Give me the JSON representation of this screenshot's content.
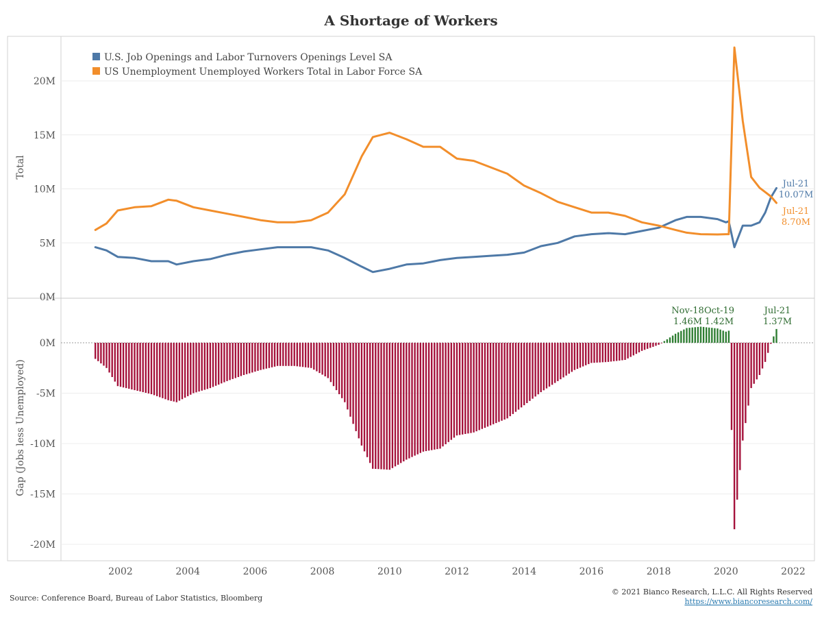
{
  "chart_data": [
    {
      "type": "line",
      "title": "A Shortage of Workers",
      "ylabel": "Total",
      "ylim": [
        0,
        23500000
      ],
      "ytick_labels": [
        "0M",
        "5M",
        "10M",
        "15M",
        "20M"
      ],
      "xtick_labels": [
        "2002",
        "2004",
        "2006",
        "2008",
        "2010",
        "2012",
        "2014",
        "2016",
        "2018",
        "2020",
        "2022"
      ],
      "grid": true,
      "legend_position": "top-left",
      "series": [
        {
          "name": "U.S. Job Openings and Labor Turnovers Openings Level SA",
          "color": "#4e79a7",
          "points": [
            [
              "2001-04",
              4.6
            ],
            [
              "2001-08",
              4.3
            ],
            [
              "2001-12",
              3.7
            ],
            [
              "2002-06",
              3.6
            ],
            [
              "2002-12",
              3.3
            ],
            [
              "2003-06",
              3.3
            ],
            [
              "2003-09",
              3.0
            ],
            [
              "2004-03",
              3.3
            ],
            [
              "2004-09",
              3.5
            ],
            [
              "2005-03",
              3.9
            ],
            [
              "2005-09",
              4.2
            ],
            [
              "2006-03",
              4.4
            ],
            [
              "2006-09",
              4.6
            ],
            [
              "2007-03",
              4.6
            ],
            [
              "2007-09",
              4.6
            ],
            [
              "2008-03",
              4.3
            ],
            [
              "2008-09",
              3.6
            ],
            [
              "2009-03",
              2.8
            ],
            [
              "2009-07",
              2.3
            ],
            [
              "2010-01",
              2.6
            ],
            [
              "2010-07",
              3.0
            ],
            [
              "2011-01",
              3.1
            ],
            [
              "2011-07",
              3.4
            ],
            [
              "2012-01",
              3.6
            ],
            [
              "2012-07",
              3.7
            ],
            [
              "2013-01",
              3.8
            ],
            [
              "2013-07",
              3.9
            ],
            [
              "2014-01",
              4.1
            ],
            [
              "2014-07",
              4.7
            ],
            [
              "2015-01",
              5.0
            ],
            [
              "2015-07",
              5.6
            ],
            [
              "2016-01",
              5.8
            ],
            [
              "2016-07",
              5.9
            ],
            [
              "2017-01",
              5.8
            ],
            [
              "2017-07",
              6.1
            ],
            [
              "2018-01",
              6.4
            ],
            [
              "2018-07",
              7.1
            ],
            [
              "2018-11",
              7.4
            ],
            [
              "2019-04",
              7.4
            ],
            [
              "2019-10",
              7.2
            ],
            [
              "2020-01",
              6.9
            ],
            [
              "2020-02",
              7.0
            ],
            [
              "2020-04",
              4.6
            ],
            [
              "2020-07",
              6.6
            ],
            [
              "2020-10",
              6.6
            ],
            [
              "2021-01",
              6.9
            ],
            [
              "2021-03",
              7.8
            ],
            [
              "2021-05",
              9.2
            ],
            [
              "2021-07",
              10.07
            ]
          ],
          "end_label": {
            "date": "Jul-21",
            "value": "10.07M"
          }
        },
        {
          "name": "US Unemployment Unemployed Workers Total in Labor Force SA",
          "color": "#f28e2b",
          "points": [
            [
              "2001-04",
              6.2
            ],
            [
              "2001-08",
              6.8
            ],
            [
              "2001-12",
              8.0
            ],
            [
              "2002-06",
              8.3
            ],
            [
              "2002-12",
              8.4
            ],
            [
              "2003-06",
              9.0
            ],
            [
              "2003-09",
              8.9
            ],
            [
              "2004-03",
              8.3
            ],
            [
              "2004-09",
              8.0
            ],
            [
              "2005-03",
              7.7
            ],
            [
              "2005-09",
              7.4
            ],
            [
              "2006-03",
              7.1
            ],
            [
              "2006-09",
              6.9
            ],
            [
              "2007-03",
              6.9
            ],
            [
              "2007-09",
              7.1
            ],
            [
              "2008-03",
              7.8
            ],
            [
              "2008-09",
              9.5
            ],
            [
              "2009-03",
              13.0
            ],
            [
              "2009-07",
              14.8
            ],
            [
              "2010-01",
              15.2
            ],
            [
              "2010-07",
              14.6
            ],
            [
              "2011-01",
              13.9
            ],
            [
              "2011-07",
              13.9
            ],
            [
              "2012-01",
              12.8
            ],
            [
              "2012-07",
              12.6
            ],
            [
              "2013-01",
              12.0
            ],
            [
              "2013-07",
              11.4
            ],
            [
              "2014-01",
              10.3
            ],
            [
              "2014-07",
              9.6
            ],
            [
              "2015-01",
              8.8
            ],
            [
              "2015-07",
              8.3
            ],
            [
              "2016-01",
              7.8
            ],
            [
              "2016-07",
              7.8
            ],
            [
              "2017-01",
              7.5
            ],
            [
              "2017-07",
              6.9
            ],
            [
              "2018-01",
              6.6
            ],
            [
              "2018-07",
              6.2
            ],
            [
              "2018-11",
              5.94
            ],
            [
              "2019-04",
              5.8
            ],
            [
              "2019-10",
              5.78
            ],
            [
              "2020-01",
              5.8
            ],
            [
              "2020-02",
              5.8
            ],
            [
              "2020-04",
              23.1
            ],
            [
              "2020-07",
              16.3
            ],
            [
              "2020-10",
              11.1
            ],
            [
              "2021-01",
              10.1
            ],
            [
              "2021-03",
              9.7
            ],
            [
              "2021-05",
              9.3
            ],
            [
              "2021-07",
              8.7
            ]
          ],
          "end_label": {
            "date": "Jul-21",
            "value": "8.70M"
          }
        }
      ]
    },
    {
      "type": "bar",
      "ylabel": "Gap (Jobs less Unemployed)",
      "ylim": [
        -21000000,
        3500000
      ],
      "ytick_labels": [
        "-20M",
        "-15M",
        "-10M",
        "-5M",
        "0M"
      ],
      "xtick_labels": [
        "2002",
        "2004",
        "2006",
        "2008",
        "2010",
        "2012",
        "2014",
        "2016",
        "2018",
        "2020",
        "2022"
      ],
      "positive_color": "#2e7d32",
      "negative_color": "#a5123b",
      "series": [
        {
          "name": "Gap",
          "points": [
            [
              "2001-04",
              -1.6
            ],
            [
              "2001-08",
              -2.5
            ],
            [
              "2001-12",
              -4.3
            ],
            [
              "2002-06",
              -4.7
            ],
            [
              "2002-12",
              -5.1
            ],
            [
              "2003-06",
              -5.7
            ],
            [
              "2003-09",
              -5.9
            ],
            [
              "2004-03",
              -5.0
            ],
            [
              "2004-09",
              -4.5
            ],
            [
              "2005-03",
              -3.8
            ],
            [
              "2005-09",
              -3.2
            ],
            [
              "2006-03",
              -2.7
            ],
            [
              "2006-09",
              -2.3
            ],
            [
              "2007-03",
              -2.3
            ],
            [
              "2007-09",
              -2.5
            ],
            [
              "2008-03",
              -3.5
            ],
            [
              "2008-09",
              -5.9
            ],
            [
              "2009-03",
              -10.2
            ],
            [
              "2009-07",
              -12.5
            ],
            [
              "2010-01",
              -12.6
            ],
            [
              "2010-07",
              -11.6
            ],
            [
              "2011-01",
              -10.8
            ],
            [
              "2011-07",
              -10.5
            ],
            [
              "2012-01",
              -9.2
            ],
            [
              "2012-07",
              -8.9
            ],
            [
              "2013-01",
              -8.2
            ],
            [
              "2013-07",
              -7.5
            ],
            [
              "2014-01",
              -6.2
            ],
            [
              "2014-07",
              -4.9
            ],
            [
              "2015-01",
              -3.8
            ],
            [
              "2015-07",
              -2.7
            ],
            [
              "2016-01",
              -2.0
            ],
            [
              "2016-07",
              -1.9
            ],
            [
              "2017-01",
              -1.7
            ],
            [
              "2017-07",
              -0.8
            ],
            [
              "2018-01",
              -0.2
            ],
            [
              "2018-07",
              0.9
            ],
            [
              "2018-11",
              1.46
            ],
            [
              "2019-04",
              1.6
            ],
            [
              "2019-10",
              1.42
            ],
            [
              "2020-01",
              1.1
            ],
            [
              "2020-02",
              1.2
            ],
            [
              "2020-04",
              -18.5
            ],
            [
              "2020-07",
              -9.7
            ],
            [
              "2020-10",
              -4.5
            ],
            [
              "2021-01",
              -3.2
            ],
            [
              "2021-03",
              -1.9
            ],
            [
              "2021-05",
              -0.1
            ],
            [
              "2021-07",
              1.37
            ]
          ]
        }
      ],
      "annotations": [
        {
          "date": "Nov-18",
          "value": "1.46M"
        },
        {
          "date": "Oct-19",
          "value": "1.42M"
        },
        {
          "date": "Jul-21",
          "value": "1.37M"
        }
      ]
    }
  ],
  "footer": {
    "source": "Source: Conference Board, Bureau of Labor Statistics, Bloomberg",
    "copyright": "© 2021 Bianco Research, L.L.C. All Rights Reserved",
    "url": "https://www.biancoresearch.com/"
  }
}
